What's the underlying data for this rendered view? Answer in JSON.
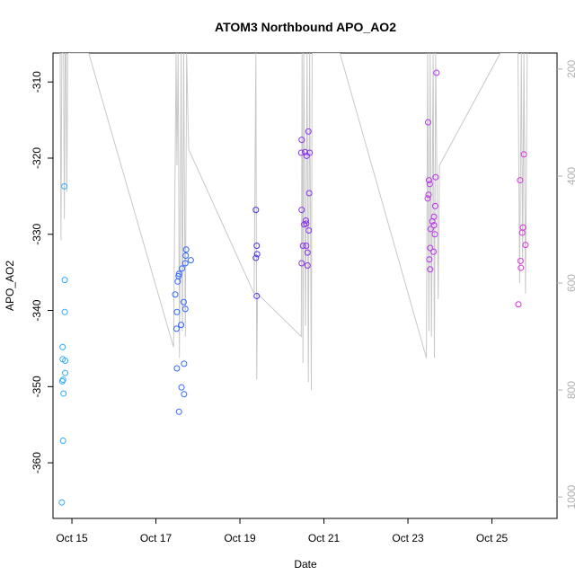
{
  "chart_data": {
    "type": "scatter",
    "title": "ATOM3 Northbound APO_AO2",
    "xlabel": "Date",
    "ylabel": "APO_AO2",
    "x_axis": {
      "min": 14.55,
      "max": 26.55,
      "ticks": [
        {
          "value": 15,
          "label": "Oct 15"
        },
        {
          "value": 17,
          "label": "Oct 17"
        },
        {
          "value": 19,
          "label": "Oct 19"
        },
        {
          "value": 21,
          "label": "Oct 21"
        },
        {
          "value": 23,
          "label": "Oct 23"
        },
        {
          "value": 25,
          "label": "Oct 25"
        }
      ]
    },
    "y_axis": {
      "min": -367.3,
      "max": -306.2,
      "ticks": [
        {
          "value": -310,
          "label": "-310"
        },
        {
          "value": -320,
          "label": "-320"
        },
        {
          "value": -330,
          "label": "-330"
        },
        {
          "value": -340,
          "label": "-340"
        },
        {
          "value": -350,
          "label": "-350"
        },
        {
          "value": -360,
          "label": "-360"
        }
      ]
    },
    "y2_axis": {
      "min": 1040,
      "max": 170,
      "color": "#b0b0b0",
      "ticks": [
        {
          "value": 200,
          "label": "200"
        },
        {
          "value": 400,
          "label": "400"
        },
        {
          "value": 600,
          "label": "600"
        },
        {
          "value": 800,
          "label": "800"
        },
        {
          "value": 1000,
          "label": "1000"
        }
      ]
    },
    "altitude_trace": {
      "color": "#c8c8c8",
      "points": [
        [
          14.72,
          170
        ],
        [
          14.74,
          520
        ],
        [
          14.76,
          170
        ],
        [
          14.8,
          170
        ],
        [
          14.82,
          480
        ],
        [
          14.84,
          170
        ],
        [
          14.86,
          170
        ],
        [
          14.88,
          430
        ],
        [
          14.9,
          170
        ],
        [
          15.4,
          170
        ],
        [
          17.42,
          720
        ],
        [
          17.48,
          170
        ],
        [
          17.5,
          380
        ],
        [
          17.53,
          170
        ],
        [
          17.56,
          740
        ],
        [
          17.6,
          170
        ],
        [
          17.63,
          690
        ],
        [
          17.66,
          170
        ],
        [
          17.7,
          700
        ],
        [
          17.73,
          170
        ],
        [
          17.78,
          350
        ],
        [
          19.34,
          620
        ],
        [
          19.38,
          170
        ],
        [
          19.4,
          780
        ],
        [
          19.42,
          620
        ],
        [
          20.46,
          700
        ],
        [
          20.48,
          170
        ],
        [
          20.5,
          750
        ],
        [
          20.52,
          170
        ],
        [
          20.56,
          680
        ],
        [
          20.6,
          170
        ],
        [
          20.63,
          785
        ],
        [
          20.66,
          170
        ],
        [
          20.7,
          800
        ],
        [
          20.72,
          170
        ],
        [
          21.38,
          170
        ],
        [
          23.44,
          740
        ],
        [
          23.47,
          170
        ],
        [
          23.5,
          690
        ],
        [
          23.53,
          170
        ],
        [
          23.56,
          700
        ],
        [
          23.6,
          170
        ],
        [
          23.63,
          740
        ],
        [
          23.66,
          170
        ],
        [
          23.72,
          630
        ],
        [
          23.75,
          380
        ],
        [
          25.2,
          170
        ],
        [
          25.62,
          170
        ],
        [
          25.66,
          600
        ],
        [
          25.7,
          170
        ],
        [
          25.73,
          560
        ],
        [
          25.76,
          170
        ],
        [
          25.8,
          620
        ],
        [
          25.84,
          170
        ]
      ]
    },
    "points": [
      {
        "x": 14.76,
        "y": -365.2,
        "color": "#33aaff"
      },
      {
        "x": 14.79,
        "y": -357.1,
        "color": "#33aaff"
      },
      {
        "x": 14.8,
        "y": -350.9,
        "color": "#33aaff"
      },
      {
        "x": 14.77,
        "y": -349.3,
        "color": "#33aaff"
      },
      {
        "x": 14.79,
        "y": -349.1,
        "color": "#33aaff"
      },
      {
        "x": 14.84,
        "y": -348.2,
        "color": "#33aaff"
      },
      {
        "x": 14.78,
        "y": -346.4,
        "color": "#33aaff"
      },
      {
        "x": 14.84,
        "y": -346.6,
        "color": "#33aaff"
      },
      {
        "x": 14.78,
        "y": -344.8,
        "color": "#33aaff"
      },
      {
        "x": 14.83,
        "y": -340.2,
        "color": "#33aaff"
      },
      {
        "x": 14.83,
        "y": -336.0,
        "color": "#33aaff"
      },
      {
        "x": 14.82,
        "y": -323.7,
        "color": "#33aaff"
      },
      {
        "x": 17.55,
        "y": -353.3,
        "color": "#3366ff"
      },
      {
        "x": 17.67,
        "y": -351.0,
        "color": "#3366ff"
      },
      {
        "x": 17.61,
        "y": -350.1,
        "color": "#3366ff"
      },
      {
        "x": 17.5,
        "y": -347.6,
        "color": "#3366ff"
      },
      {
        "x": 17.67,
        "y": -347.0,
        "color": "#3366ff"
      },
      {
        "x": 17.49,
        "y": -342.4,
        "color": "#3366ff"
      },
      {
        "x": 17.6,
        "y": -341.9,
        "color": "#3366ff"
      },
      {
        "x": 17.5,
        "y": -340.2,
        "color": "#3366ff"
      },
      {
        "x": 17.7,
        "y": -339.8,
        "color": "#3366ff"
      },
      {
        "x": 17.66,
        "y": -338.9,
        "color": "#3366ff"
      },
      {
        "x": 17.46,
        "y": -337.9,
        "color": "#3366ff"
      },
      {
        "x": 17.52,
        "y": -336.2,
        "color": "#3366ff"
      },
      {
        "x": 17.54,
        "y": -335.5,
        "color": "#3366ff"
      },
      {
        "x": 17.55,
        "y": -335.2,
        "color": "#3366ff"
      },
      {
        "x": 17.62,
        "y": -334.5,
        "color": "#3366ff"
      },
      {
        "x": 17.7,
        "y": -333.8,
        "color": "#3366ff"
      },
      {
        "x": 17.83,
        "y": -333.4,
        "color": "#3366ff"
      },
      {
        "x": 17.71,
        "y": -332.8,
        "color": "#3366ff"
      },
      {
        "x": 17.72,
        "y": -332.0,
        "color": "#3366ff"
      },
      {
        "x": 19.4,
        "y": -338.1,
        "color": "#4433ee"
      },
      {
        "x": 19.38,
        "y": -333.1,
        "color": "#4433ee"
      },
      {
        "x": 19.41,
        "y": -332.6,
        "color": "#4433ee"
      },
      {
        "x": 19.4,
        "y": -331.5,
        "color": "#4433ee"
      },
      {
        "x": 19.38,
        "y": -326.8,
        "color": "#4433ee"
      },
      {
        "x": 20.47,
        "y": -333.8,
        "color": "#8833ee"
      },
      {
        "x": 20.61,
        "y": -334.1,
        "color": "#8833ee"
      },
      {
        "x": 20.61,
        "y": -332.4,
        "color": "#8833ee"
      },
      {
        "x": 20.5,
        "y": -331.5,
        "color": "#8833ee"
      },
      {
        "x": 20.58,
        "y": -331.5,
        "color": "#8833ee"
      },
      {
        "x": 20.64,
        "y": -329.5,
        "color": "#8833ee"
      },
      {
        "x": 20.53,
        "y": -328.7,
        "color": "#8833ee"
      },
      {
        "x": 20.58,
        "y": -328.6,
        "color": "#8833ee"
      },
      {
        "x": 20.57,
        "y": -328.2,
        "color": "#8833ee"
      },
      {
        "x": 20.47,
        "y": -326.8,
        "color": "#8833ee"
      },
      {
        "x": 20.65,
        "y": -324.6,
        "color": "#8833ee"
      },
      {
        "x": 20.59,
        "y": -319.7,
        "color": "#8833ee"
      },
      {
        "x": 20.46,
        "y": -319.3,
        "color": "#8833ee"
      },
      {
        "x": 20.55,
        "y": -319.2,
        "color": "#8833ee"
      },
      {
        "x": 20.66,
        "y": -319.3,
        "color": "#8833ee"
      },
      {
        "x": 20.47,
        "y": -317.6,
        "color": "#8833ee"
      },
      {
        "x": 20.63,
        "y": -316.5,
        "color": "#8833ee"
      },
      {
        "x": 23.53,
        "y": -334.6,
        "color": "#bb33ee"
      },
      {
        "x": 23.51,
        "y": -333.3,
        "color": "#bb33ee"
      },
      {
        "x": 23.61,
        "y": -332.3,
        "color": "#bb33ee"
      },
      {
        "x": 23.53,
        "y": -331.8,
        "color": "#bb33ee"
      },
      {
        "x": 23.64,
        "y": -330.0,
        "color": "#bb33ee"
      },
      {
        "x": 23.54,
        "y": -329.3,
        "color": "#bb33ee"
      },
      {
        "x": 23.62,
        "y": -328.8,
        "color": "#bb33ee"
      },
      {
        "x": 23.58,
        "y": -328.3,
        "color": "#bb33ee"
      },
      {
        "x": 23.62,
        "y": -327.7,
        "color": "#bb33ee"
      },
      {
        "x": 23.65,
        "y": -326.3,
        "color": "#bb33ee"
      },
      {
        "x": 23.47,
        "y": -325.3,
        "color": "#bb33ee"
      },
      {
        "x": 23.49,
        "y": -324.8,
        "color": "#bb33ee"
      },
      {
        "x": 23.52,
        "y": -323.4,
        "color": "#bb33ee"
      },
      {
        "x": 23.5,
        "y": -322.9,
        "color": "#bb33ee"
      },
      {
        "x": 23.66,
        "y": -322.5,
        "color": "#bb33ee"
      },
      {
        "x": 23.48,
        "y": -315.3,
        "color": "#bb33ee"
      },
      {
        "x": 23.68,
        "y": -308.8,
        "color": "#bb33ee"
      },
      {
        "x": 25.63,
        "y": -339.2,
        "color": "#dd33dd"
      },
      {
        "x": 25.69,
        "y": -334.4,
        "color": "#dd33dd"
      },
      {
        "x": 25.68,
        "y": -333.5,
        "color": "#dd33dd"
      },
      {
        "x": 25.8,
        "y": -331.4,
        "color": "#dd33dd"
      },
      {
        "x": 25.72,
        "y": -329.8,
        "color": "#dd33dd"
      },
      {
        "x": 25.74,
        "y": -329.1,
        "color": "#dd33dd"
      },
      {
        "x": 25.67,
        "y": -322.9,
        "color": "#dd33dd"
      },
      {
        "x": 25.76,
        "y": -319.5,
        "color": "#dd33dd"
      }
    ]
  }
}
